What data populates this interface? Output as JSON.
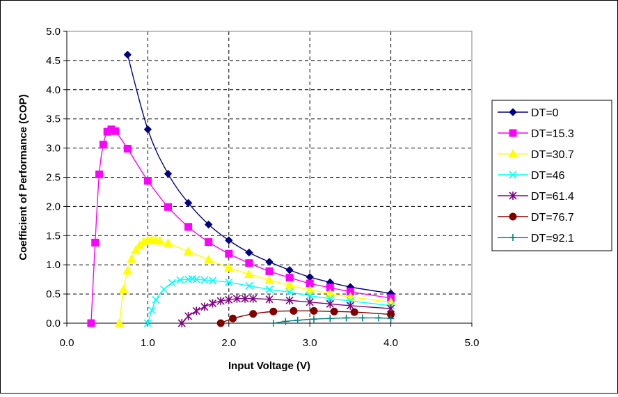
{
  "chart_data": {
    "type": "line",
    "title": "",
    "xlabel": "Input Voltage (V)",
    "ylabel": "Coefficient of Performance (COP)",
    "xlim": [
      0,
      5
    ],
    "ylim": [
      0,
      5
    ],
    "xticks": [
      "0.0",
      "1.0",
      "2.0",
      "3.0",
      "4.0",
      "5.0"
    ],
    "yticks": [
      "0.0",
      "0.5",
      "1.0",
      "1.5",
      "2.0",
      "2.5",
      "3.0",
      "3.5",
      "4.0",
      "4.5",
      "5.0"
    ],
    "grid": true,
    "legend_position": "right",
    "series": [
      {
        "name": "DT=0",
        "color": "#000080",
        "marker": "diamond",
        "points": [
          [
            0.75,
            4.6
          ],
          [
            1.0,
            3.32
          ],
          [
            1.25,
            2.56
          ],
          [
            1.5,
            2.06
          ],
          [
            1.75,
            1.69
          ],
          [
            2.0,
            1.42
          ],
          [
            2.25,
            1.21
          ],
          [
            2.5,
            1.05
          ],
          [
            2.75,
            0.91
          ],
          [
            3.0,
            0.79
          ],
          [
            3.25,
            0.7
          ],
          [
            3.5,
            0.62
          ],
          [
            4.0,
            0.51
          ]
        ]
      },
      {
        "name": "DT=15.3",
        "color": "#FF00FF",
        "marker": "square",
        "points": [
          [
            0.3,
            0.0
          ],
          [
            0.35,
            1.38
          ],
          [
            0.4,
            2.55
          ],
          [
            0.45,
            3.06
          ],
          [
            0.5,
            3.28
          ],
          [
            0.55,
            3.32
          ],
          [
            0.6,
            3.29
          ],
          [
            0.75,
            2.99
          ],
          [
            1.0,
            2.44
          ],
          [
            1.25,
            1.99
          ],
          [
            1.5,
            1.65
          ],
          [
            1.75,
            1.39
          ],
          [
            2.0,
            1.19
          ],
          [
            2.25,
            1.03
          ],
          [
            2.5,
            0.89
          ],
          [
            2.75,
            0.78
          ],
          [
            3.0,
            0.68
          ],
          [
            3.25,
            0.61
          ],
          [
            3.5,
            0.54
          ],
          [
            4.0,
            0.43
          ]
        ]
      },
      {
        "name": "DT=30.7",
        "color": "#FFFF00",
        "marker": "triangle",
        "points": [
          [
            0.65,
            0.0
          ],
          [
            0.7,
            0.58
          ],
          [
            0.75,
            0.9
          ],
          [
            0.8,
            1.1
          ],
          [
            0.85,
            1.25
          ],
          [
            0.9,
            1.34
          ],
          [
            0.95,
            1.4
          ],
          [
            1.0,
            1.42
          ],
          [
            1.05,
            1.43
          ],
          [
            1.1,
            1.42
          ],
          [
            1.15,
            1.41
          ],
          [
            1.25,
            1.37
          ],
          [
            1.5,
            1.23
          ],
          [
            1.75,
            1.09
          ],
          [
            2.0,
            0.95
          ],
          [
            2.25,
            0.84
          ],
          [
            2.5,
            0.74
          ],
          [
            2.75,
            0.65
          ],
          [
            3.0,
            0.57
          ],
          [
            3.25,
            0.51
          ],
          [
            3.5,
            0.45
          ],
          [
            4.0,
            0.36
          ]
        ]
      },
      {
        "name": "DT=46",
        "color": "#00FFFF",
        "marker": "x",
        "points": [
          [
            1.0,
            0.0
          ],
          [
            1.05,
            0.22
          ],
          [
            1.1,
            0.4
          ],
          [
            1.2,
            0.58
          ],
          [
            1.3,
            0.69
          ],
          [
            1.4,
            0.74
          ],
          [
            1.5,
            0.75
          ],
          [
            1.55,
            0.76
          ],
          [
            1.6,
            0.75
          ],
          [
            1.7,
            0.74
          ],
          [
            1.8,
            0.73
          ],
          [
            2.0,
            0.7
          ],
          [
            2.25,
            0.64
          ],
          [
            2.5,
            0.58
          ],
          [
            2.75,
            0.53
          ],
          [
            3.0,
            0.47
          ],
          [
            3.25,
            0.42
          ],
          [
            3.5,
            0.38
          ],
          [
            4.0,
            0.3
          ]
        ]
      },
      {
        "name": "DT=61.4",
        "color": "#800080",
        "marker": "star",
        "points": [
          [
            1.42,
            0.0
          ],
          [
            1.5,
            0.12
          ],
          [
            1.6,
            0.21
          ],
          [
            1.7,
            0.28
          ],
          [
            1.8,
            0.34
          ],
          [
            1.9,
            0.38
          ],
          [
            2.0,
            0.4
          ],
          [
            2.1,
            0.42
          ],
          [
            2.2,
            0.42
          ],
          [
            2.3,
            0.42
          ],
          [
            2.5,
            0.41
          ],
          [
            2.75,
            0.39
          ],
          [
            3.0,
            0.36
          ],
          [
            3.25,
            0.33
          ],
          [
            3.5,
            0.3
          ],
          [
            4.0,
            0.25
          ]
        ]
      },
      {
        "name": "DT=76.7",
        "color": "#800000",
        "marker": "circle",
        "points": [
          [
            1.9,
            0.0
          ],
          [
            2.05,
            0.08
          ],
          [
            2.3,
            0.16
          ],
          [
            2.55,
            0.2
          ],
          [
            2.8,
            0.21
          ],
          [
            3.05,
            0.21
          ],
          [
            3.3,
            0.2
          ],
          [
            3.55,
            0.19
          ],
          [
            4.0,
            0.15
          ]
        ]
      },
      {
        "name": "DT=92.1",
        "color": "#008080",
        "marker": "plus",
        "points": [
          [
            2.55,
            0.0
          ],
          [
            2.7,
            0.03
          ],
          [
            2.85,
            0.05
          ],
          [
            3.05,
            0.07
          ],
          [
            3.25,
            0.08
          ],
          [
            3.45,
            0.09
          ],
          [
            3.65,
            0.09
          ],
          [
            3.85,
            0.09
          ],
          [
            4.0,
            0.08
          ]
        ]
      }
    ]
  }
}
